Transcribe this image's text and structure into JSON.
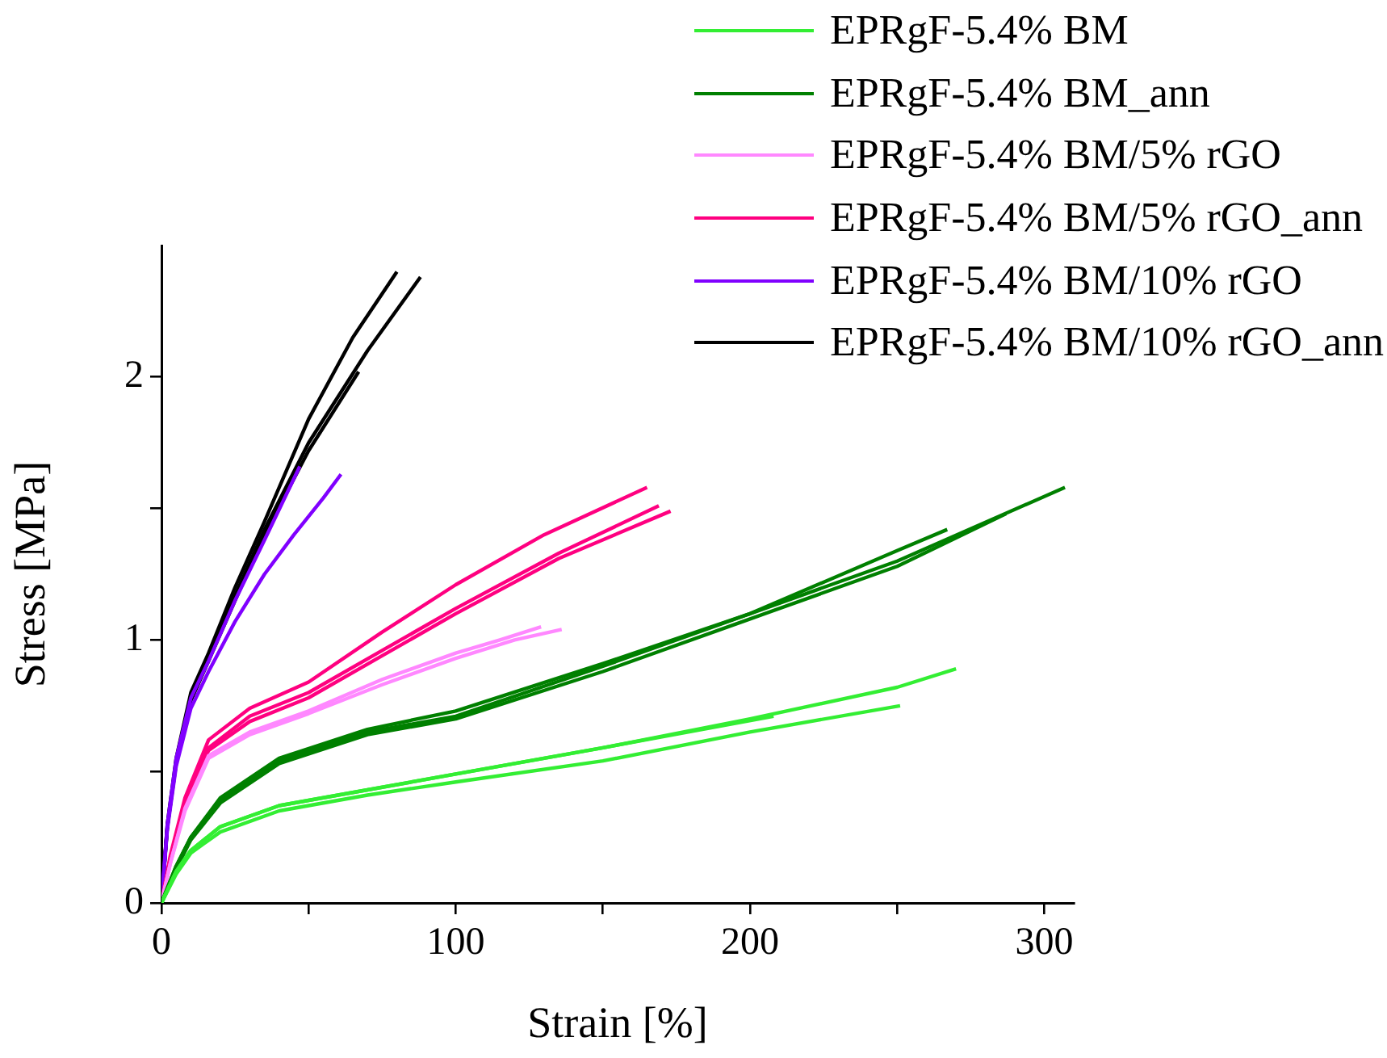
{
  "chart_data": {
    "type": "line",
    "xlabel": "Strain [%]",
    "ylabel": "Stress [MPa]",
    "xlim": [
      0,
      310
    ],
    "ylim": [
      0,
      2.5
    ],
    "xticks": [
      0,
      {
        "value": 50,
        "label": null
      },
      100,
      {
        "value": 150,
        "label": null
      },
      200,
      {
        "value": 250,
        "label": null
      },
      300
    ],
    "yticks": [
      0,
      {
        "value": 0.5,
        "label": null
      },
      1,
      {
        "value": 1.5,
        "label": null
      },
      2
    ],
    "grid": false,
    "legend": "top right",
    "marker": "none",
    "line_style": "solid",
    "series": [
      {
        "name": "EPRgF-5.4% BM",
        "color": "#33ee33",
        "x": [
          0,
          5,
          10,
          20,
          40,
          70,
          100,
          150,
          200,
          250,
          270
        ],
        "values": [
          0,
          0.12,
          0.2,
          0.29,
          0.37,
          0.43,
          0.49,
          0.59,
          0.7,
          0.82,
          0.89
        ]
      },
      {
        "color": "#33ee33",
        "x": [
          0,
          5,
          10,
          20,
          40,
          70,
          100,
          150,
          200,
          251
        ],
        "values": [
          0,
          0.11,
          0.19,
          0.27,
          0.35,
          0.41,
          0.46,
          0.54,
          0.65,
          0.75
        ]
      },
      {
        "color": "#33ee33",
        "x": [
          0,
          5,
          10,
          20,
          40,
          70,
          100,
          150,
          208
        ],
        "values": [
          0,
          0.12,
          0.2,
          0.29,
          0.37,
          0.43,
          0.49,
          0.59,
          0.71
        ]
      },
      {
        "name": "EPRgF-5.4% BM_ann",
        "color": "#008000",
        "x": [
          0,
          5,
          10,
          20,
          40,
          70,
          100,
          150,
          200,
          250,
          307
        ],
        "values": [
          0,
          0.14,
          0.25,
          0.4,
          0.55,
          0.66,
          0.73,
          0.91,
          1.1,
          1.3,
          1.58
        ]
      },
      {
        "color": "#008000",
        "x": [
          0,
          5,
          10,
          20,
          40,
          70,
          100,
          150,
          200,
          250,
          287
        ],
        "values": [
          0,
          0.13,
          0.24,
          0.38,
          0.53,
          0.64,
          0.7,
          0.88,
          1.08,
          1.28,
          1.48
        ]
      },
      {
        "color": "#008000",
        "x": [
          0,
          5,
          10,
          20,
          40,
          70,
          100,
          150,
          200,
          250,
          267
        ],
        "values": [
          0,
          0.14,
          0.25,
          0.39,
          0.54,
          0.65,
          0.71,
          0.9,
          1.1,
          1.34,
          1.42
        ]
      },
      {
        "name": "EPRgF-5.4% BM/5% rGO",
        "color": "#ff88ff",
        "x": [
          0,
          3,
          8,
          16,
          30,
          50,
          75,
          100,
          120,
          136
        ],
        "values": [
          0,
          0.15,
          0.35,
          0.55,
          0.64,
          0.72,
          0.83,
          0.93,
          1.0,
          1.04
        ]
      },
      {
        "color": "#ff88ff",
        "x": [
          0,
          3,
          8,
          16,
          30,
          50,
          75,
          100,
          115,
          129
        ],
        "values": [
          0,
          0.15,
          0.36,
          0.56,
          0.65,
          0.73,
          0.85,
          0.95,
          1.0,
          1.05
        ]
      },
      {
        "name": "EPRgF-5.4% BM/5% rGO_ann",
        "color": "#ff0080",
        "x": [
          0,
          3,
          8,
          16,
          30,
          50,
          75,
          100,
          130,
          165
        ],
        "values": [
          0,
          0.18,
          0.4,
          0.62,
          0.74,
          0.84,
          1.03,
          1.21,
          1.4,
          1.58
        ]
      },
      {
        "color": "#ff0080",
        "x": [
          0,
          3,
          8,
          16,
          30,
          50,
          75,
          100,
          135,
          169
        ],
        "values": [
          0,
          0.17,
          0.38,
          0.59,
          0.71,
          0.8,
          0.96,
          1.12,
          1.33,
          1.51
        ]
      },
      {
        "color": "#ff0080",
        "x": [
          0,
          3,
          8,
          16,
          30,
          50,
          75,
          100,
          135,
          173
        ],
        "values": [
          0,
          0.17,
          0.37,
          0.58,
          0.69,
          0.78,
          0.94,
          1.1,
          1.31,
          1.49
        ]
      },
      {
        "name": "EPRgF-5.4% BM/10% rGO",
        "color": "#8000ff",
        "x": [
          0,
          2,
          5,
          10,
          16,
          25,
          35,
          47
        ],
        "values": [
          0,
          0.3,
          0.55,
          0.78,
          0.92,
          1.15,
          1.38,
          1.66
        ]
      },
      {
        "color": "#8000ff",
        "x": [
          0,
          2,
          5,
          10,
          16,
          25,
          35,
          45,
          55,
          61
        ],
        "values": [
          0,
          0.28,
          0.52,
          0.74,
          0.88,
          1.07,
          1.25,
          1.4,
          1.54,
          1.63
        ]
      },
      {
        "name": "EPRgF-5.4% BM/10% rGO_ann",
        "color": "#000000",
        "x": [
          0,
          2,
          5,
          10,
          16,
          25,
          35,
          50,
          65,
          80
        ],
        "values": [
          0,
          0.3,
          0.55,
          0.8,
          0.95,
          1.2,
          1.45,
          1.84,
          2.15,
          2.4
        ]
      },
      {
        "color": "#000000",
        "x": [
          0,
          2,
          5,
          10,
          16,
          25,
          35,
          50,
          70,
          88
        ],
        "values": [
          0,
          0.29,
          0.54,
          0.78,
          0.93,
          1.17,
          1.42,
          1.75,
          2.1,
          2.38
        ]
      },
      {
        "color": "#000000",
        "x": [
          0,
          2,
          5,
          10,
          16,
          25,
          35,
          50,
          67
        ],
        "values": [
          0,
          0.29,
          0.53,
          0.77,
          0.92,
          1.15,
          1.4,
          1.72,
          2.02
        ]
      }
    ]
  }
}
